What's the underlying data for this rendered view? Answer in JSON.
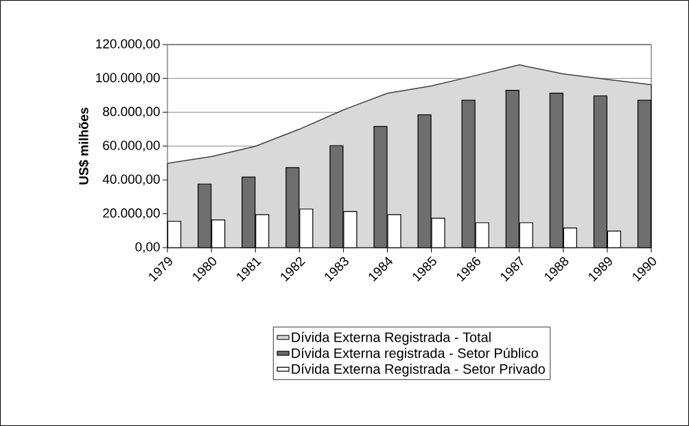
{
  "chart_data": {
    "type": "bar",
    "ylabel": "US$ milhões",
    "categories": [
      "1979",
      "1980",
      "1981",
      "1982",
      "1983",
      "1984",
      "1985",
      "1986",
      "1987",
      "1988",
      "1989",
      "1990"
    ],
    "series": [
      {
        "name": "Dívida Externa Registrada - Total",
        "type": "area",
        "color": "#d9d9d9",
        "values": [
          49800,
          53800,
          59900,
          70000,
          81400,
          91200,
          95600,
          101700,
          108000,
          102700,
          99400,
          96300
        ]
      },
      {
        "name": "Dívida Externa registrada - Setor Público",
        "type": "bar",
        "color": "#6e6e6e",
        "values": [
          null,
          37600,
          41700,
          47300,
          60300,
          71600,
          78500,
          87100,
          93000,
          91300,
          89700,
          87100
        ]
      },
      {
        "name": "Dívida Externa Registrada - Setor Privado",
        "color": "#ffffff",
        "values": [
          15600,
          16400,
          19500,
          22800,
          21300,
          19500,
          17400,
          14700,
          14700,
          11600,
          9800,
          null
        ]
      }
    ],
    "ylim": [
      0,
      120000
    ],
    "yticks": [
      {
        "value": 0,
        "label": "0,00"
      },
      {
        "value": 20000,
        "label": "20.000,00"
      },
      {
        "value": 40000,
        "label": "40.000,00"
      },
      {
        "value": 60000,
        "label": "60.000,00"
      },
      {
        "value": 80000,
        "label": "80.000,00"
      },
      {
        "value": 100000,
        "label": "100.000,00"
      },
      {
        "value": 120000,
        "label": "120.000,00"
      }
    ],
    "grid": "y",
    "legend": "bottom"
  }
}
